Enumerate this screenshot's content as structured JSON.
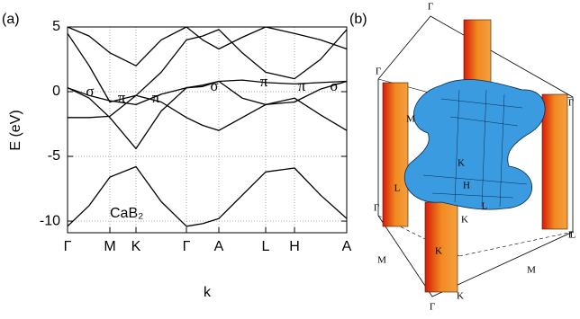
{
  "chart_data": {
    "type": "line",
    "panel_label": "(a)",
    "x_label": "k",
    "y_label": "E (eV)",
    "x": [
      0,
      24,
      47,
      76,
      104,
      132,
      150,
      168,
      194,
      220,
      252,
      281,
      310
    ],
    "xlim": [
      0,
      310
    ],
    "xticks": [
      {
        "value": 0,
        "label": "Γ"
      },
      {
        "value": 47,
        "label": "M"
      },
      {
        "value": 76,
        "label": "K"
      },
      {
        "value": 132,
        "label": "Γ"
      },
      {
        "value": 168,
        "label": "A"
      },
      {
        "value": 220,
        "label": "L"
      },
      {
        "value": 252,
        "label": "H"
      },
      {
        "value": 310,
        "label": "A"
      }
    ],
    "ylim": [
      -10.9,
      5
    ],
    "yticks": [
      5,
      0,
      -5,
      -10
    ],
    "grid": true,
    "series": [
      {
        "color": "#000000",
        "values": [
          -10.4,
          -8.8,
          -6.6,
          -5.8,
          -8.5,
          -10.4,
          -10.2,
          -9.8,
          -8.0,
          -6.2,
          -5.9,
          -8.0,
          -9.8
        ]
      },
      {
        "color": "#000000",
        "values": [
          0.3,
          -0.5,
          -2.0,
          -4.4,
          -1.5,
          0.3,
          0.5,
          0.8,
          -0.5,
          -1.0,
          -0.8,
          0.2,
          0.8
        ]
      },
      {
        "color": "#000000",
        "values": [
          0.3,
          -0.3,
          -0.7,
          -1.0,
          -0.2,
          0.3,
          0.4,
          0.8,
          0.9,
          0.7,
          0.6,
          0.7,
          0.8
        ]
      },
      {
        "color": "#000000",
        "values": [
          -2.0,
          -2.0,
          -1.9,
          -0.3,
          -0.8,
          -2.0,
          -2.6,
          -3.0,
          -2.0,
          -1.0,
          -0.5,
          -1.8,
          -3.0
        ]
      },
      {
        "color": "#000000",
        "values": [
          4.5,
          2.0,
          -0.8,
          -0.3,
          1.5,
          4.0,
          4.3,
          4.8,
          3.0,
          1.5,
          1.0,
          2.5,
          4.8
        ]
      },
      {
        "color": "#000000",
        "values": [
          5.0,
          4.3,
          3.0,
          2.0,
          4.0,
          5.0,
          4.0,
          3.3,
          4.2,
          5.0,
          4.5,
          4.0,
          3.3
        ]
      }
    ],
    "annotations": [
      "σ",
      "π",
      "π",
      "σ",
      "π",
      "π",
      "σ"
    ],
    "compound": "CaB₂"
  },
  "figure_b": {
    "label": "(b)",
    "points": [
      "Γ",
      "Γ",
      "Γ",
      "Γ",
      "Γ",
      "Γ",
      "M",
      "M",
      "M",
      "K",
      "K",
      "K",
      "K",
      "H",
      "L",
      "L",
      "L"
    ]
  }
}
